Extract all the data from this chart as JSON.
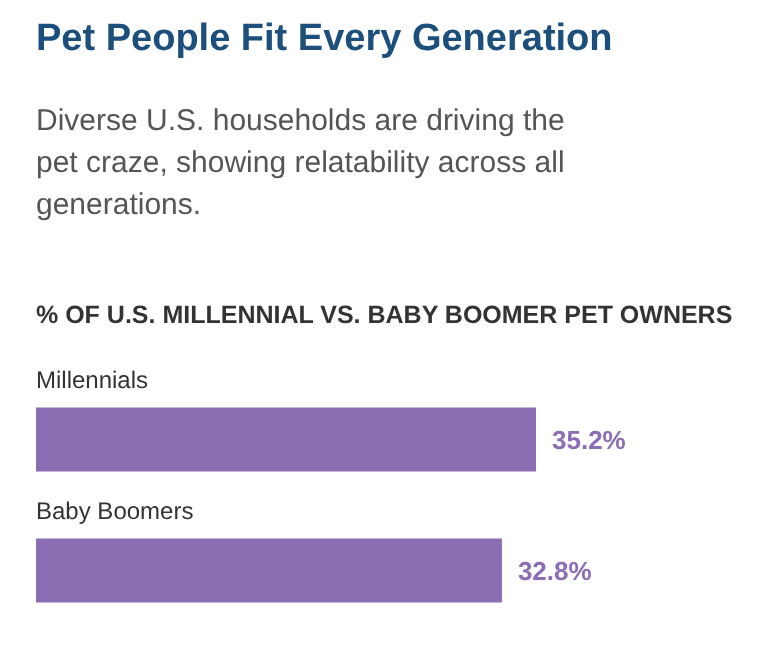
{
  "chart_data": {
    "type": "bar",
    "orientation": "horizontal",
    "title": "Pet People Fit Every Generation",
    "subtitle": "Diverse U.S. households are driving the pet craze, showing relatability across all generations.",
    "annotations": [
      "% OF U.S. MILLENNIAL VS. BABY BOOMER PET OWNERS"
    ],
    "categories": [
      "Millennials",
      "Baby Boomers"
    ],
    "values": [
      35.2,
      32.8
    ],
    "value_labels": [
      "35.2%",
      "32.8%"
    ],
    "color": "#8b6db4"
  }
}
